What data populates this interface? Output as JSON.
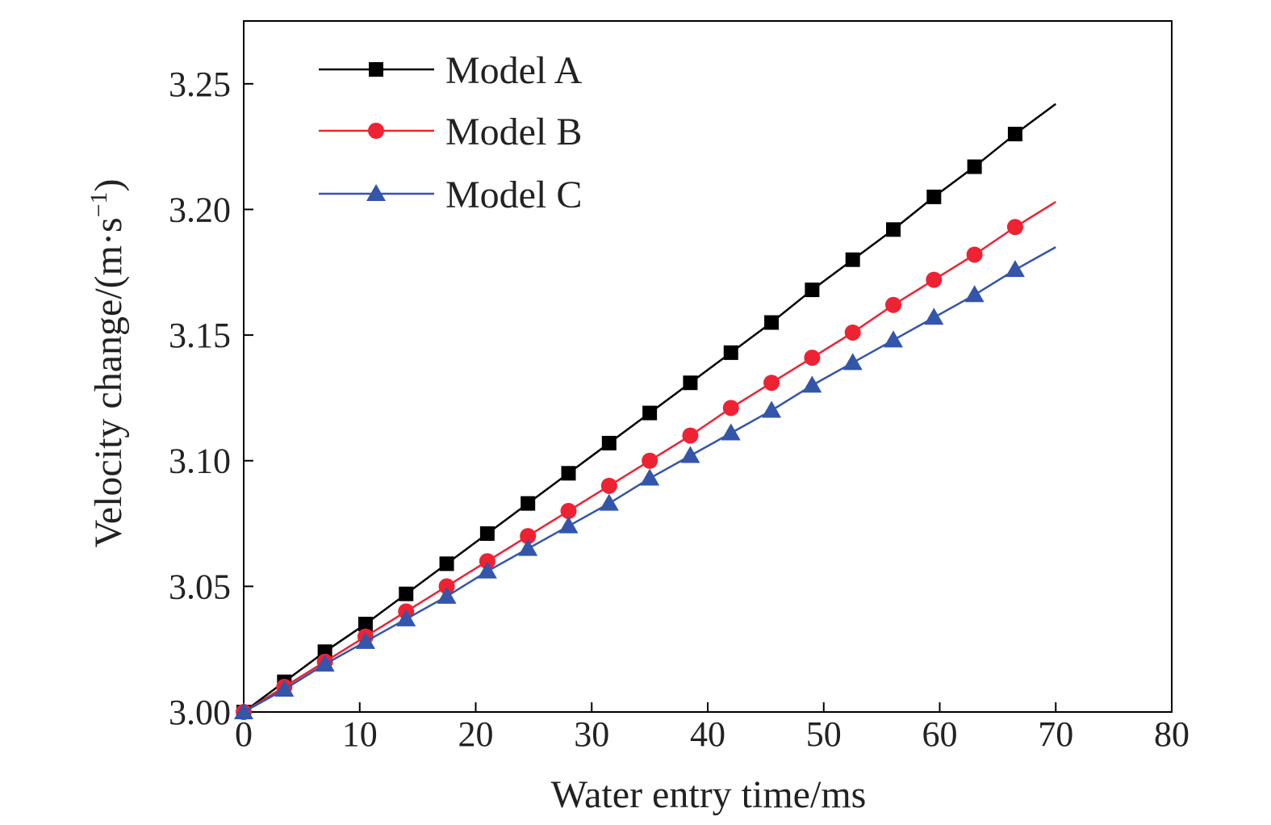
{
  "chart_data": {
    "type": "line",
    "title": "",
    "xlabel": "Water entry time/ms",
    "ylabel_main": "Velocity change/(m·s",
    "ylabel_sup": "−1",
    "ylabel_close": ")",
    "xlim": [
      0,
      80
    ],
    "ylim": [
      3.0,
      3.275
    ],
    "xticks": [
      0,
      10,
      20,
      30,
      40,
      50,
      60,
      70,
      80
    ],
    "xtick_labels": [
      "0",
      "10",
      "20",
      "30",
      "40",
      "50",
      "60",
      "70",
      "80"
    ],
    "yticks": [
      3.0,
      3.05,
      3.1,
      3.15,
      3.2,
      3.25
    ],
    "ytick_labels": [
      "3.00",
      "3.05",
      "3.10",
      "3.15",
      "3.20",
      "3.25"
    ],
    "grid": false,
    "legend_position": "top-left",
    "x": [
      0,
      3.5,
      7,
      10.5,
      14,
      17.5,
      21,
      24.5,
      28,
      31.5,
      35,
      38.5,
      42,
      45.5,
      49,
      52.5,
      56,
      59.5,
      63,
      66.5
    ],
    "series": [
      {
        "name": "Model A",
        "color": "#000000",
        "marker": "square",
        "line_end": [
          70,
          3.242
        ],
        "values": [
          3.0,
          3.012,
          3.024,
          3.035,
          3.047,
          3.059,
          3.071,
          3.083,
          3.095,
          3.107,
          3.119,
          3.131,
          3.143,
          3.155,
          3.168,
          3.18,
          3.192,
          3.205,
          3.217,
          3.23
        ]
      },
      {
        "name": "Model B",
        "color": "#ee2233",
        "marker": "circle",
        "line_end": [
          70,
          3.203
        ],
        "values": [
          3.0,
          3.01,
          3.02,
          3.03,
          3.04,
          3.05,
          3.06,
          3.07,
          3.08,
          3.09,
          3.1,
          3.11,
          3.121,
          3.131,
          3.141,
          3.151,
          3.162,
          3.172,
          3.182,
          3.193
        ]
      },
      {
        "name": "Model C",
        "color": "#3355aa",
        "marker": "triangle",
        "line_end": [
          70,
          3.185
        ],
        "values": [
          3.0,
          3.009,
          3.019,
          3.028,
          3.037,
          3.046,
          3.056,
          3.065,
          3.074,
          3.083,
          3.093,
          3.102,
          3.111,
          3.12,
          3.13,
          3.139,
          3.148,
          3.157,
          3.166,
          3.176
        ]
      }
    ]
  }
}
